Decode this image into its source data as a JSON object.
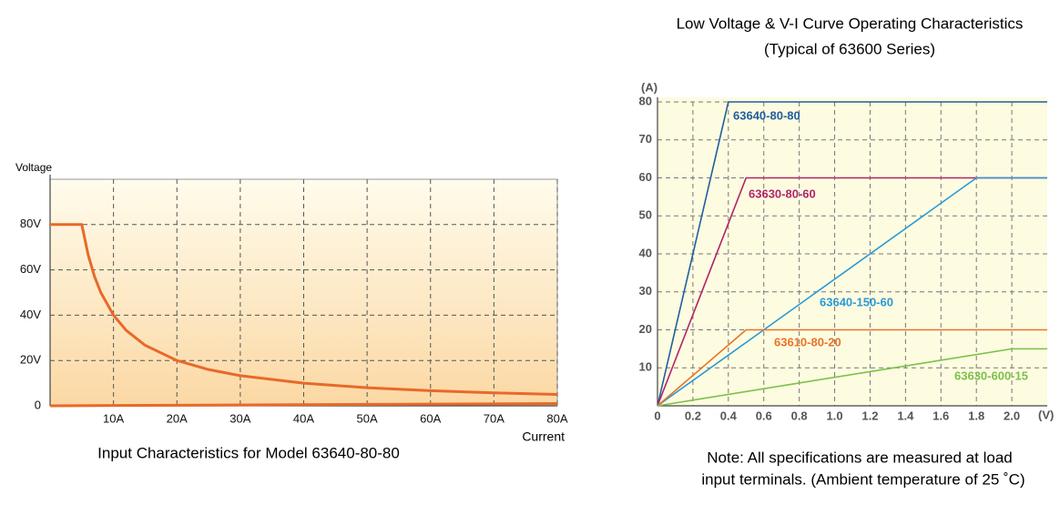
{
  "chart_data": [
    {
      "type": "line",
      "title": "Input Characteristics for Model 63640-80-80",
      "y_label": "Voltage",
      "x_label": "Current",
      "xlim": [
        0,
        80
      ],
      "ylim": [
        0,
        100
      ],
      "xticks": [
        {
          "value": 10,
          "label": "10A"
        },
        {
          "value": 20,
          "label": "20A"
        },
        {
          "value": 30,
          "label": "30A"
        },
        {
          "value": 40,
          "label": "40A"
        },
        {
          "value": 50,
          "label": "50A"
        },
        {
          "value": 60,
          "label": "60A"
        },
        {
          "value": 70,
          "label": "70A"
        },
        {
          "value": 80,
          "label": "80A"
        }
      ],
      "yticks": [
        0,
        {
          "value": 20,
          "label": "20V"
        },
        {
          "value": 40,
          "label": "40V"
        },
        {
          "value": 60,
          "label": "60V"
        },
        {
          "value": 80,
          "label": "80V"
        }
      ],
      "grid": true,
      "series": [
        {
          "color": "#e8692a",
          "x": [
            0,
            5,
            6,
            7,
            8,
            10,
            12,
            15,
            20,
            25,
            30,
            40,
            50,
            60,
            70,
            80
          ],
          "values": [
            80,
            80,
            66.7,
            57.1,
            50,
            40,
            33.3,
            26.7,
            20,
            16,
            13.3,
            10,
            8,
            6.7,
            5.7,
            5
          ]
        },
        {
          "color": "#e8692a",
          "x": [
            0,
            80
          ],
          "values": [
            0,
            1
          ]
        }
      ]
    },
    {
      "type": "line",
      "title": "Low Voltage & V-I Curve Operating Characteristics",
      "subtitle": "(Typical of 63600 Series)",
      "y_label": "(A)",
      "x_label": "(V)",
      "note": [
        "Note: All specifications are measured at load",
        "input terminals. (Ambient temperature of 25 ˚C)"
      ],
      "xlim": [
        0,
        2.2
      ],
      "ylim": [
        0,
        80
      ],
      "xticks": [
        0,
        0.2,
        0.4,
        0.6,
        0.8,
        {
          "value": 1,
          "label": "1.0"
        },
        1.2,
        1.4,
        1.6,
        1.8,
        {
          "value": 2,
          "label": "2.0"
        }
      ],
      "yticks": [
        10,
        20,
        30,
        40,
        50,
        60,
        70,
        80
      ],
      "grid": true,
      "series": [
        {
          "name": "63640-80-80",
          "color": "#1f5fa0",
          "x": [
            0,
            0.4,
            2.2
          ],
          "values": [
            0,
            80,
            80
          ]
        },
        {
          "name": "63630-80-60",
          "color": "#b0246a",
          "x": [
            0,
            0.5,
            2.2
          ],
          "values": [
            0,
            60,
            60
          ]
        },
        {
          "name": "63640-150-60",
          "color": "#2a9ad8",
          "x": [
            0,
            1.8,
            2.2
          ],
          "values": [
            0,
            60,
            60
          ]
        },
        {
          "name": "63610-80-20",
          "color": "#e8742a",
          "x": [
            0,
            0.5,
            2.2
          ],
          "values": [
            0,
            20,
            20
          ]
        },
        {
          "name": "63630-600-15",
          "color": "#7cc04a",
          "x": [
            0,
            2.0,
            2.2
          ],
          "values": [
            0,
            15,
            15
          ]
        }
      ]
    }
  ]
}
